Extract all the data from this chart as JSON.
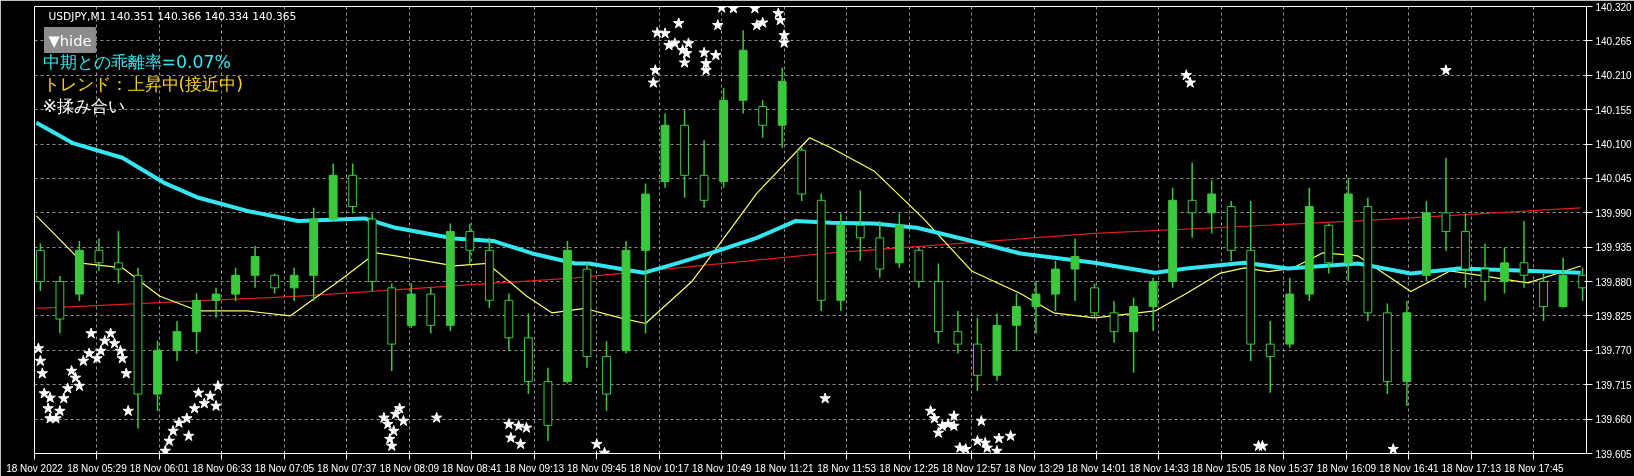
{
  "chart_data": {
    "type": "candlestick",
    "color": "#3cc83c",
    "x": [
      "2022-11-18T05:00",
      "2022-11-18T05:10",
      "2022-11-18T05:20",
      "2022-11-18T05:30",
      "2022-11-18T05:40",
      "2022-11-18T05:50",
      "2022-11-18T06:00",
      "2022-11-18T06:10",
      "2022-11-18T06:20",
      "2022-11-18T06:30",
      "2022-11-18T06:40",
      "2022-11-18T06:50",
      "2022-11-18T07:00",
      "2022-11-18T07:10",
      "2022-11-18T07:20",
      "2022-11-18T07:30",
      "2022-11-18T07:40",
      "2022-11-18T07:50",
      "2022-11-18T08:00",
      "2022-11-18T08:10",
      "2022-11-18T08:20",
      "2022-11-18T08:30",
      "2022-11-18T08:40",
      "2022-11-18T08:50",
      "2022-11-18T09:00",
      "2022-11-18T09:10",
      "2022-11-18T09:20",
      "2022-11-18T09:30",
      "2022-11-18T09:40",
      "2022-11-18T09:50",
      "2022-11-18T10:00",
      "2022-11-18T10:10",
      "2022-11-18T10:20",
      "2022-11-18T10:30",
      "2022-11-18T10:40",
      "2022-11-18T10:50",
      "2022-11-18T11:00",
      "2022-11-18T11:10",
      "2022-11-18T11:20",
      "2022-11-18T11:30",
      "2022-11-18T11:40",
      "2022-11-18T11:50",
      "2022-11-18T12:00",
      "2022-11-18T12:10",
      "2022-11-18T12:20",
      "2022-11-18T12:30",
      "2022-11-18T12:40",
      "2022-11-18T12:50",
      "2022-11-18T13:00",
      "2022-11-18T13:10",
      "2022-11-18T13:20",
      "2022-11-18T13:30",
      "2022-11-18T13:40",
      "2022-11-18T13:50",
      "2022-11-18T14:00",
      "2022-11-18T14:10",
      "2022-11-18T14:20",
      "2022-11-18T14:30",
      "2022-11-18T14:40",
      "2022-11-18T14:50",
      "2022-11-18T15:00",
      "2022-11-18T15:10",
      "2022-11-18T15:20",
      "2022-11-18T15:30",
      "2022-11-18T15:40",
      "2022-11-18T15:50",
      "2022-11-18T16:00",
      "2022-11-18T16:10",
      "2022-11-18T16:20",
      "2022-11-18T16:30",
      "2022-11-18T16:40",
      "2022-11-18T16:50",
      "2022-11-18T17:00",
      "2022-11-18T17:10",
      "2022-11-18T17:20",
      "2022-11-18T17:30",
      "2022-11-18T17:40",
      "2022-11-18T17:50",
      "2022-11-18T18:00",
      "2022-11-18T18:10"
    ],
    "ohlc": [
      [
        139.93,
        139.941,
        139.865,
        139.88
      ],
      [
        139.88,
        139.889,
        139.797,
        139.82
      ],
      [
        139.86,
        139.945,
        139.849,
        139.93
      ],
      [
        139.93,
        139.949,
        139.897,
        139.91
      ],
      [
        139.91,
        139.961,
        139.877,
        139.9
      ],
      [
        139.89,
        139.902,
        139.645,
        139.7
      ],
      [
        139.7,
        139.785,
        139.673,
        139.77
      ],
      [
        139.77,
        139.817,
        139.753,
        139.8
      ],
      [
        139.8,
        139.861,
        139.765,
        139.85
      ],
      [
        139.85,
        139.87,
        139.822,
        139.86
      ],
      [
        139.86,
        139.902,
        139.849,
        139.89
      ],
      [
        139.89,
        139.937,
        139.87,
        139.92
      ],
      [
        139.89,
        139.893,
        139.861,
        139.87
      ],
      [
        139.87,
        139.902,
        139.849,
        139.89
      ],
      [
        139.89,
        139.998,
        139.849,
        139.98
      ],
      [
        139.98,
        140.069,
        139.977,
        140.05
      ],
      [
        140.05,
        140.069,
        139.989,
        140.0
      ],
      [
        139.98,
        139.989,
        139.865,
        139.88
      ],
      [
        139.87,
        139.877,
        139.737,
        139.78
      ],
      [
        139.81,
        139.877,
        139.806,
        139.86
      ],
      [
        139.86,
        139.87,
        139.797,
        139.81
      ],
      [
        139.81,
        139.973,
        139.801,
        139.96
      ],
      [
        139.96,
        139.973,
        139.909,
        139.93
      ],
      [
        139.93,
        139.95,
        139.838,
        139.85
      ],
      [
        139.85,
        139.861,
        139.769,
        139.79
      ],
      [
        139.79,
        139.829,
        139.7,
        139.72
      ],
      [
        139.72,
        139.742,
        139.625,
        139.65
      ],
      [
        139.72,
        139.945,
        139.717,
        139.93
      ],
      [
        139.9,
        139.909,
        139.742,
        139.76
      ],
      [
        139.76,
        139.785,
        139.673,
        139.7
      ],
      [
        139.77,
        139.945,
        139.765,
        139.93
      ],
      [
        139.93,
        140.037,
        139.797,
        140.02
      ],
      [
        140.04,
        140.149,
        140.03,
        140.13
      ],
      [
        140.13,
        140.154,
        140.014,
        140.05
      ],
      [
        140.05,
        140.106,
        139.998,
        140.01
      ],
      [
        140.04,
        140.19,
        140.03,
        140.17
      ],
      [
        140.17,
        140.282,
        140.149,
        140.25
      ],
      [
        140.16,
        140.17,
        140.11,
        140.13
      ],
      [
        140.13,
        140.222,
        140.094,
        140.2
      ],
      [
        140.09,
        140.094,
        140.009,
        140.02
      ],
      [
        140.01,
        140.021,
        139.833,
        139.85
      ],
      [
        139.85,
        139.989,
        139.833,
        139.97
      ],
      [
        139.97,
        140.026,
        139.913,
        139.95
      ],
      [
        139.95,
        139.977,
        139.886,
        139.9
      ],
      [
        139.91,
        139.989,
        139.902,
        139.97
      ],
      [
        139.93,
        139.934,
        139.87,
        139.88
      ],
      [
        139.88,
        139.909,
        139.781,
        139.8
      ],
      [
        139.8,
        139.833,
        139.765,
        139.78
      ],
      [
        139.78,
        139.822,
        139.705,
        139.73
      ],
      [
        139.73,
        139.829,
        139.721,
        139.81
      ],
      [
        139.81,
        139.861,
        139.769,
        139.84
      ],
      [
        139.84,
        139.881,
        139.797,
        139.86
      ],
      [
        139.86,
        139.913,
        139.833,
        139.9
      ],
      [
        139.9,
        139.949,
        139.849,
        139.92
      ],
      [
        139.87,
        139.877,
        139.822,
        139.83
      ],
      [
        139.83,
        139.849,
        139.782,
        139.8
      ],
      [
        139.8,
        139.854,
        139.734,
        139.84
      ],
      [
        139.84,
        139.886,
        139.801,
        139.88
      ],
      [
        139.88,
        140.03,
        139.87,
        140.01
      ],
      [
        140.01,
        140.07,
        139.95,
        139.99
      ],
      [
        139.99,
        140.042,
        139.957,
        140.02
      ],
      [
        140.0,
        140.009,
        139.913,
        139.93
      ],
      [
        139.93,
        140.009,
        139.753,
        139.78
      ],
      [
        139.78,
        139.817,
        139.702,
        139.76
      ],
      [
        139.78,
        139.886,
        139.774,
        139.86
      ],
      [
        139.86,
        140.03,
        139.849,
        140.0
      ],
      [
        139.97,
        139.973,
        139.893,
        139.91
      ],
      [
        139.91,
        140.046,
        139.881,
        140.02
      ],
      [
        140.0,
        140.014,
        139.817,
        139.83
      ],
      [
        139.83,
        139.845,
        139.7,
        139.72
      ],
      [
        139.72,
        139.849,
        139.681,
        139.83
      ],
      [
        139.89,
        140.009,
        139.881,
        139.99
      ],
      [
        139.99,
        140.078,
        139.929,
        139.96
      ],
      [
        139.96,
        139.989,
        139.87,
        139.9
      ],
      [
        139.9,
        139.941,
        139.849,
        139.88
      ],
      [
        139.88,
        139.934,
        139.861,
        139.91
      ],
      [
        139.91,
        139.977,
        139.87,
        139.89
      ],
      [
        139.88,
        139.893,
        139.817,
        139.84
      ],
      [
        139.84,
        139.918,
        139.838,
        139.89
      ],
      [
        139.89,
        139.902,
        139.849,
        139.87
      ]
    ],
    "series": [
      {
        "type": "line",
        "color": "#dc1e1e",
        "x": [
          "2022-11-18T04:58",
          "2022-11-18T07:15",
          "2022-11-18T09:34",
          "2022-11-18T11:45",
          "2022-11-18T14:00",
          "2022-11-18T16:15",
          "2022-11-18T18:09"
        ],
        "values": [
          139.837,
          139.857,
          139.886,
          139.926,
          139.957,
          139.977,
          139.998
        ]
      },
      {
        "type": "line",
        "color": "#ffff66",
        "x": [
          "2022-11-18T04:58",
          "2022-11-18T05:22",
          "2022-11-18T05:42",
          "2022-11-18T06:01",
          "2022-11-18T06:21",
          "2022-11-18T06:46",
          "2022-11-18T07:08",
          "2022-11-18T07:15",
          "2022-11-18T07:33",
          "2022-11-18T07:52",
          "2022-11-18T08:02",
          "2022-11-18T08:32",
          "2022-11-18T08:49",
          "2022-11-18T09:09",
          "2022-11-18T09:22",
          "2022-11-18T09:39",
          "2022-11-18T09:57",
          "2022-11-18T10:10",
          "2022-11-18T10:34",
          "2022-11-18T11:07",
          "2022-11-18T11:34",
          "2022-11-18T11:45",
          "2022-11-18T12:07",
          "2022-11-18T12:32",
          "2022-11-18T12:57",
          "2022-11-18T13:22",
          "2022-11-18T13:39",
          "2022-11-18T14:00",
          "2022-11-18T14:31",
          "2022-11-18T14:47",
          "2022-11-18T15:04",
          "2022-11-18T15:17",
          "2022-11-18T15:29",
          "2022-11-18T15:41",
          "2022-11-18T15:57",
          "2022-11-18T16:15",
          "2022-11-18T16:42",
          "2022-11-18T17:02",
          "2022-11-18T17:19",
          "2022-11-18T17:42",
          "2022-11-18T18:09"
        ],
        "values": [
          139.985,
          139.909,
          139.902,
          139.857,
          139.833,
          139.833,
          139.825,
          139.841,
          139.881,
          139.926,
          139.921,
          139.905,
          139.909,
          139.857,
          139.83,
          139.837,
          139.822,
          139.813,
          139.881,
          140.021,
          140.11,
          140.094,
          140.057,
          139.982,
          139.897,
          139.861,
          139.83,
          139.822,
          139.833,
          139.861,
          139.893,
          139.902,
          139.896,
          139.901,
          139.926,
          139.921,
          139.864,
          139.897,
          139.889,
          139.878,
          139.905
        ]
      },
      {
        "type": "line",
        "color": "#33e6f0",
        "x": [
          "2022-11-18T04:58",
          "2022-11-18T05:17",
          "2022-11-18T05:42",
          "2022-11-18T06:04",
          "2022-11-18T06:21",
          "2022-11-18T06:46",
          "2022-11-18T07:12",
          "2022-11-18T07:46",
          "2022-11-18T08:02",
          "2022-11-18T08:32",
          "2022-11-18T08:52",
          "2022-11-18T09:12",
          "2022-11-18T09:34",
          "2022-11-18T09:41",
          "2022-11-18T10:09",
          "2022-11-18T10:26",
          "2022-11-18T10:47",
          "2022-11-18T11:07",
          "2022-11-18T11:27",
          "2022-11-18T11:45",
          "2022-11-18T12:07",
          "2022-11-18T12:29",
          "2022-11-18T12:57",
          "2022-11-18T13:22",
          "2022-11-18T14:00",
          "2022-11-18T14:31",
          "2022-11-18T14:47",
          "2022-11-18T15:17",
          "2022-11-18T15:39",
          "2022-11-18T16:15",
          "2022-11-18T16:42",
          "2022-11-18T17:07",
          "2022-11-18T18:09"
        ],
        "values": [
          140.134,
          140.101,
          140.078,
          140.037,
          140.014,
          139.993,
          139.977,
          139.981,
          139.966,
          139.949,
          139.945,
          139.925,
          139.909,
          139.909,
          139.894,
          139.909,
          139.929,
          139.95,
          139.977,
          139.974,
          139.973,
          139.966,
          139.945,
          139.925,
          139.91,
          139.894,
          139.901,
          139.91,
          139.901,
          139.909,
          139.893,
          139.901,
          139.894
        ]
      },
      {
        "type": "scatter",
        "marker": "star",
        "color": "#ffffff",
        "x": [
          "2022-11-18T04:59",
          "2022-11-18T05:00",
          "2022-11-18T05:01",
          "2022-11-18T05:02",
          "2022-11-18T05:05",
          "2022-11-18T05:04",
          "2022-11-18T05:05",
          "2022-11-18T05:08",
          "2022-11-18T05:10",
          "2022-11-18T05:12",
          "2022-11-18T05:14",
          "2022-11-18T05:16",
          "2022-11-18T05:18",
          "2022-11-18T05:20",
          "2022-11-18T05:22",
          "2022-11-18T05:25",
          "2022-11-18T05:26",
          "2022-11-18T05:29",
          "2022-11-18T05:31",
          "2022-11-18T05:33",
          "2022-11-18T05:36",
          "2022-11-18T05:38",
          "2022-11-18T05:41",
          "2022-11-18T05:42",
          "2022-11-18T05:44",
          "2022-11-18T05:45",
          "2022-11-18T06:04",
          "2022-11-18T06:06",
          "2022-11-18T06:08",
          "2022-11-18T06:11",
          "2022-11-18T06:15",
          "2022-11-18T06:16",
          "2022-11-18T06:19",
          "2022-11-18T06:21",
          "2022-11-18T06:24",
          "2022-11-18T06:27",
          "2022-11-18T06:30",
          "2022-11-18T06:31",
          "2022-11-18T07:56",
          "2022-11-18T07:58",
          "2022-11-18T08:02",
          "2022-11-18T08:04",
          "2022-11-18T08:06",
          "2022-11-18T08:01",
          "2022-11-18T07:59",
          "2022-11-18T08:00",
          "2022-11-18T08:23",
          "2022-11-18T09:00",
          "2022-11-18T09:05",
          "2022-11-18T09:09",
          "2022-11-18T09:01",
          "2022-11-18T09:06",
          "2022-11-18T09:45",
          "2022-11-18T09:49",
          "2022-11-18T10:14",
          "2022-11-18T10:15",
          "2022-11-18T10:16",
          "2022-11-18T10:20",
          "2022-11-18T10:22",
          "2022-11-18T10:25",
          "2022-11-18T10:27",
          "2022-11-18T10:29",
          "2022-11-18T10:31",
          "2022-11-18T10:32",
          "2022-11-18T10:30",
          "2022-11-18T10:40",
          "2022-11-18T10:41",
          "2022-11-18T10:41",
          "2022-11-18T10:46",
          "2022-11-18T10:47",
          "2022-11-18T10:49",
          "2022-11-18T10:55",
          "2022-11-18T11:06",
          "2022-11-18T11:07",
          "2022-11-18T11:10",
          "2022-11-18T11:18",
          "2022-11-18T11:19",
          "2022-11-18T11:21",
          "2022-11-18T11:21",
          "2022-11-18T11:42",
          "2022-11-18T12:36",
          "2022-11-18T12:38",
          "2022-11-18T12:40",
          "2022-11-18T12:42",
          "2022-11-18T12:45",
          "2022-11-18T12:48",
          "2022-11-18T12:48",
          "2022-11-18T13:02",
          "2022-11-18T12:51",
          "2022-11-18T12:54",
          "2022-11-18T13:00",
          "2022-11-18T13:04",
          "2022-11-18T13:05",
          "2022-11-18T13:11",
          "2022-11-18T13:10",
          "2022-11-18T13:17",
          "2022-11-18T14:47",
          "2022-11-18T14:49",
          "2022-11-18T15:24",
          "2022-11-18T15:26",
          "2022-11-18T17:00",
          "2022-11-18T16:33"
        ],
        "values": [
          139.773,
          139.753,
          139.733,
          139.701,
          139.694,
          139.677,
          139.661,
          139.661,
          139.673,
          139.693,
          139.709,
          139.737,
          139.726,
          139.713,
          139.753,
          139.765,
          139.797,
          139.757,
          139.769,
          139.785,
          139.797,
          139.781,
          139.769,
          139.757,
          139.733,
          139.673,
          139.609,
          139.625,
          139.641,
          139.654,
          139.661,
          139.633,
          139.677,
          139.702,
          139.685,
          139.697,
          139.681,
          139.713,
          139.662,
          139.652,
          139.668,
          139.677,
          139.657,
          139.641,
          139.628,
          139.617,
          139.662,
          139.652,
          139.649,
          139.646,
          139.63,
          139.62,
          139.62,
          139.606,
          140.198,
          140.218,
          140.278,
          140.277,
          140.258,
          140.261,
          140.293,
          140.25,
          140.245,
          140.261,
          140.23,
          140.246,
          140.229,
          140.218,
          140.242,
          140.29,
          140.318,
          140.317,
          140.317,
          140.29,
          140.294,
          140.309,
          140.298,
          140.274,
          140.262,
          139.693,
          139.673,
          139.661,
          139.638,
          139.649,
          139.652,
          139.665,
          139.649,
          139.657,
          139.614,
          139.612,
          139.625,
          139.622,
          139.614,
          139.629,
          139.609,
          139.633,
          140.21,
          140.198,
          139.617,
          139.617,
          140.218,
          139.612
        ]
      }
    ],
    "xlim": [
      "2022-11-18T04:57",
      "2022-11-18T18:12"
    ],
    "ylim": [
      139.605,
      140.32
    ],
    "xticks": [
      {
        "value": "2022-11-18T04:57",
        "label": "18 Nov 2022"
      },
      {
        "value": "2022-11-18T05:29",
        "label": "18 Nov 05:29"
      },
      {
        "value": "2022-11-18T06:01",
        "label": "18 Nov 06:01"
      },
      {
        "value": "2022-11-18T06:33",
        "label": "18 Nov 06:33"
      },
      {
        "value": "2022-11-18T07:05",
        "label": "18 Nov 07:05"
      },
      {
        "value": "2022-11-18T07:37",
        "label": "18 Nov 07:37"
      },
      {
        "value": "2022-11-18T08:09",
        "label": "18 Nov 08:09"
      },
      {
        "value": "2022-11-18T08:41",
        "label": "18 Nov 08:41"
      },
      {
        "value": "2022-11-18T09:13",
        "label": "18 Nov 09:13"
      },
      {
        "value": "2022-11-18T09:45",
        "label": "18 Nov 09:45"
      },
      {
        "value": "2022-11-18T10:17",
        "label": "18 Nov 10:17"
      },
      {
        "value": "2022-11-18T10:49",
        "label": "18 Nov 10:49"
      },
      {
        "value": "2022-11-18T11:21",
        "label": "18 Nov 11:21"
      },
      {
        "value": "2022-11-18T11:53",
        "label": "18 Nov 11:53"
      },
      {
        "value": "2022-11-18T12:25",
        "label": "18 Nov 12:25"
      },
      {
        "value": "2022-11-18T12:57",
        "label": "18 Nov 12:57"
      },
      {
        "value": "2022-11-18T13:29",
        "label": "18 Nov 13:29"
      },
      {
        "value": "2022-11-18T14:01",
        "label": "18 Nov 14:01"
      },
      {
        "value": "2022-11-18T14:33",
        "label": "18 Nov 14:33"
      },
      {
        "value": "2022-11-18T15:05",
        "label": "18 Nov 15:05"
      },
      {
        "value": "2022-11-18T15:37",
        "label": "18 Nov 15:37"
      },
      {
        "value": "2022-11-18T16:09",
        "label": "18 Nov 16:09"
      },
      {
        "value": "2022-11-18T16:41",
        "label": "18 Nov 16:41"
      },
      {
        "value": "2022-11-18T17:13",
        "label": "18 Nov 17:13"
      },
      {
        "value": "2022-11-18T17:45",
        "label": "18 Nov 17:45"
      }
    ],
    "yticks": [
      {
        "value": 139.605,
        "label": "139.605"
      },
      {
        "value": 139.66,
        "label": "139.660"
      },
      {
        "value": 139.715,
        "label": "139.715"
      },
      {
        "value": 139.77,
        "label": "139.770"
      },
      {
        "value": 139.825,
        "label": "139.825"
      },
      {
        "value": 139.88,
        "label": "139.880"
      },
      {
        "value": 139.935,
        "label": "139.935"
      },
      {
        "value": 139.99,
        "label": "139.990"
      },
      {
        "value": 140.045,
        "label": "140.045"
      },
      {
        "value": 140.1,
        "label": "140.100"
      },
      {
        "value": 140.155,
        "label": "140.155"
      },
      {
        "value": 140.21,
        "label": "140.210"
      },
      {
        "value": 140.265,
        "label": "140.265"
      },
      {
        "value": 140.32,
        "label": "140.320"
      }
    ],
    "grid": true,
    "annotations": [
      "USDJPY,M1  140.351 140.366 140.334 140.365",
      "▼hide",
      "中期との乖離率=0.07%",
      "トレンド：上昇中(接近中)",
      "※揉み合い"
    ]
  }
}
